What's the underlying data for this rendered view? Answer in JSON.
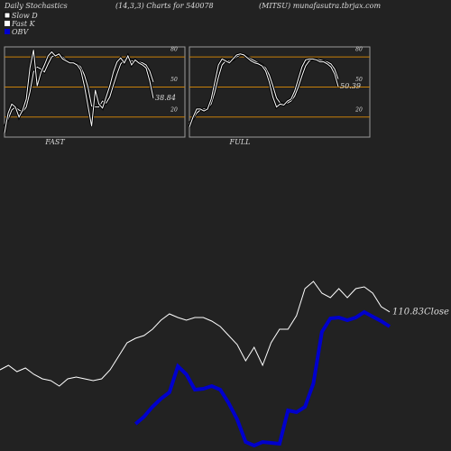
{
  "header": {
    "title": "Daily Stochastics",
    "subtitle": "(14,3,3) Charts for 540078",
    "source": "(MITSU) munafasutra.tbrjax.com"
  },
  "chart_data": [
    {
      "type": "line",
      "label": "FAST",
      "ylim": [
        0,
        90
      ],
      "yticks": [
        20,
        50,
        80
      ],
      "grid_color": "#c8800a",
      "series": [
        {
          "name": "Slow D",
          "color": "#ffffff",
          "values": [
            10,
            18,
            27,
            30,
            27,
            25,
            30,
            45,
            65,
            70,
            68,
            65,
            73,
            80,
            82,
            82,
            80,
            77,
            75,
            74,
            73,
            70,
            62,
            50,
            31,
            30,
            30,
            36,
            34,
            40,
            52,
            63,
            73,
            77,
            78,
            76,
            76,
            75,
            74,
            72,
            66,
            55
          ]
        },
        {
          "name": "Fast K",
          "color": "#ffffff",
          "values": [
            4,
            24,
            33,
            30,
            20,
            27,
            38,
            69,
            87,
            51,
            64,
            72,
            81,
            85,
            81,
            83,
            78,
            76,
            74,
            74,
            72,
            67,
            51,
            31,
            11,
            47,
            33,
            29,
            40,
            51,
            65,
            75,
            79,
            74,
            81,
            72,
            77,
            74,
            72,
            69,
            56,
            38.84
          ]
        }
      ]
    },
    {
      "type": "line",
      "label": "FULL",
      "ylim": [
        0,
        90
      ],
      "yticks": [
        20,
        50,
        80
      ],
      "grid_color": "#c8800a",
      "series": [
        {
          "color": "#ffffff",
          "values": [
            14,
            18,
            24,
            27,
            28,
            28,
            33,
            45,
            60,
            72,
            76,
            76,
            77,
            80,
            82,
            82,
            80,
            78,
            76,
            74,
            72,
            69,
            62,
            51,
            39,
            34,
            33,
            34,
            36,
            41,
            50,
            61,
            71,
            76,
            78,
            78,
            77,
            76,
            75,
            73,
            68,
            58
          ]
        },
        {
          "color": "#ffffff",
          "values": [
            10,
            20,
            28,
            28,
            26,
            28,
            38,
            55,
            72,
            78,
            76,
            74,
            78,
            82,
            83,
            82,
            79,
            76,
            74,
            73,
            71,
            66,
            55,
            40,
            30,
            33,
            32,
            36,
            38,
            46,
            58,
            70,
            77,
            78,
            78,
            77,
            75,
            75,
            73,
            70,
            63,
            50.39
          ]
        }
      ]
    },
    {
      "type": "line",
      "ylim": [
        80,
        124
      ],
      "y2lim": [
        0,
        220
      ],
      "series": [
        {
          "name": "Close",
          "color": "#ffffff",
          "values": [
            98,
            99,
            97.6,
            98.4,
            97,
            96,
            95.6,
            94.4,
            96,
            96.4,
            96,
            95.6,
            96,
            98,
            101,
            104,
            105,
            105.6,
            107,
            109,
            110.4,
            109.6,
            109,
            109.6,
            109.6,
            108.8,
            107.6,
            105.6,
            103.6,
            100,
            103,
            99,
            104,
            107,
            107,
            110,
            116,
            117.6,
            115,
            114,
            116,
            114,
            116,
            116.4,
            115,
            112,
            110.83
          ]
        },
        {
          "name": "OBV",
          "color": "#0000cc",
          "axis": "y2",
          "values": [
            null,
            null,
            null,
            null,
            null,
            null,
            null,
            null,
            null,
            null,
            null,
            null,
            null,
            null,
            null,
            null,
            30,
            38,
            49,
            58,
            65,
            94,
            85,
            68,
            69,
            72,
            68,
            53,
            35,
            10,
            6,
            10,
            9,
            8,
            45,
            43,
            49,
            75,
            132,
            147,
            148,
            145,
            148,
            154,
            149,
            144,
            138
          ]
        }
      ]
    }
  ]
}
